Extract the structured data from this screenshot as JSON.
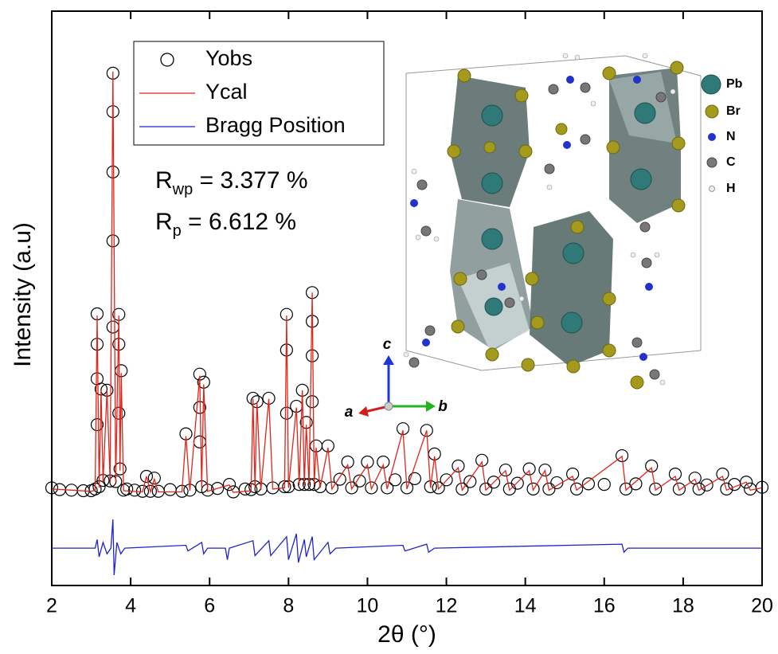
{
  "chart_data": {
    "type": "line",
    "x_label": "2θ (°)",
    "y_label": "Intensity (a.u)",
    "xlim": [
      2,
      20
    ],
    "xticks": [
      2,
      4,
      6,
      8,
      10,
      12,
      14,
      16,
      18,
      20
    ],
    "ylim": [
      0,
      100
    ],
    "legend": "top-left",
    "annotations": [
      {
        "main": "R",
        "sub": "wp",
        "rest": " = 3.377 %"
      },
      {
        "main": "R",
        "sub": "p",
        "rest": " = 6.612 %"
      }
    ],
    "series": [
      {
        "name": "Yobs",
        "color": "#000000",
        "mode": "markers",
        "x": [
          2,
          2.5,
          3.0,
          3.1,
          3.15,
          3.2,
          3.25,
          3.3,
          3.4,
          3.48,
          3.55,
          3.62,
          3.7,
          3.73,
          3.76,
          3.82,
          4.3,
          4.4,
          4.5,
          4.6,
          4.7,
          5.3,
          5.4,
          5.5,
          5.75,
          5.8,
          5.85,
          5.95,
          6.5,
          6.6,
          7.05,
          7.1,
          7.15,
          7.2,
          7.3,
          7.5,
          7.6,
          7.9,
          7.95,
          8.0,
          8.2,
          8.27,
          8.35,
          8.4,
          8.45,
          8.52,
          8.6,
          8.65,
          8.7,
          8.8,
          9.0,
          9.1,
          9.5,
          9.6,
          10.0,
          10.1,
          10.4,
          10.5,
          10.9,
          11.0,
          11.5,
          11.6,
          11.7,
          11.8,
          12.3,
          12.4,
          12.9,
          13.0,
          13.5,
          13.6,
          14.1,
          14.2,
          14.5,
          14.6,
          15.2,
          15.3,
          16.45,
          16.55,
          17.2,
          17.3,
          17.8,
          17.9,
          18.3,
          18.4,
          19.0,
          19.1,
          19.6,
          19.7,
          20,
          3.55,
          3.55,
          3.55,
          3.55,
          3.15,
          3.15,
          3.15,
          3.7,
          3.7,
          7.95,
          7.95,
          8.6,
          8.6,
          8.6,
          5.75,
          5.75,
          2.2,
          2.8,
          3.9,
          4.1,
          5.0,
          6.2,
          6.9,
          9.3,
          9.8,
          10.7,
          11.2,
          12.0,
          12.6,
          13.2,
          13.8,
          14.8,
          15.6,
          16.0,
          16.8,
          18.6,
          19.3
        ],
        "values": [
          17,
          16.6,
          16.5,
          16.8,
          47.3,
          17.2,
          34.2,
          18.3,
          34,
          18.2,
          89.2,
          18.1,
          47.2,
          20.3,
          37.4,
          16.6,
          16.4,
          19,
          16.4,
          18.7,
          16.4,
          16.4,
          26.4,
          16.6,
          36.8,
          17.2,
          35.4,
          16.6,
          17.6,
          16.3,
          16.7,
          32.6,
          17.2,
          32,
          16.8,
          32.6,
          17,
          17.2,
          47.2,
          17.2,
          31.2,
          17.6,
          34,
          17.6,
          28.4,
          17.6,
          51,
          17.6,
          24.3,
          17.2,
          24.3,
          17,
          21.5,
          17,
          21.5,
          17,
          21.5,
          17,
          27.3,
          17,
          27,
          17.2,
          22.9,
          17,
          20.8,
          16.8,
          21.8,
          16.8,
          20.1,
          16.8,
          20.3,
          16.8,
          20.1,
          16.8,
          19.4,
          16.8,
          22.6,
          16.8,
          20.8,
          16.8,
          19.4,
          16.8,
          18.7,
          16.8,
          19.4,
          16.8,
          18,
          16.8,
          17.1,
          82.5,
          72,
          60,
          45,
          42,
          36,
          28,
          42,
          30,
          41,
          30,
          46,
          40,
          32,
          31,
          25,
          16.7,
          16.5,
          16.8,
          16.6,
          16.7,
          16.9,
          16.8,
          18.5,
          18.2,
          18.4,
          18.6,
          18.4,
          18.1,
          18,
          17.8,
          17.9,
          17.7,
          17.6,
          17.7,
          17.5,
          17.6
        ]
      },
      {
        "name": "Ycal",
        "color": "#e0241b",
        "mode": "lines",
        "x": [
          2,
          2.5,
          3.0,
          3.1,
          3.15,
          3.2,
          3.25,
          3.3,
          3.4,
          3.48,
          3.55,
          3.62,
          3.7,
          3.73,
          3.76,
          3.82,
          4.3,
          4.4,
          4.5,
          4.6,
          4.7,
          5.3,
          5.4,
          5.5,
          5.75,
          5.8,
          5.85,
          5.95,
          6.5,
          6.6,
          7.05,
          7.1,
          7.15,
          7.2,
          7.3,
          7.5,
          7.6,
          7.9,
          7.95,
          8.0,
          8.2,
          8.27,
          8.35,
          8.4,
          8.45,
          8.52,
          8.6,
          8.65,
          8.7,
          8.8,
          9.0,
          9.1,
          9.5,
          9.6,
          10.0,
          10.1,
          10.4,
          10.5,
          10.9,
          11.0,
          11.5,
          11.6,
          11.7,
          11.8,
          12.3,
          12.4,
          12.9,
          13.0,
          13.5,
          13.6,
          14.1,
          14.2,
          14.5,
          14.6,
          15.2,
          15.3,
          16.45,
          16.55,
          17.2,
          17.3,
          17.8,
          17.9,
          18.3,
          18.4,
          19.0,
          19.1,
          19.6,
          19.7,
          20
        ],
        "values": [
          16.8,
          16.6,
          16.4,
          16.6,
          47,
          17,
          34,
          18,
          34,
          18,
          89.5,
          18,
          47,
          20,
          37,
          16.5,
          16.3,
          19,
          16.3,
          18.5,
          16.3,
          16.3,
          26,
          16.5,
          36.5,
          17,
          35,
          16.4,
          17.5,
          16.2,
          16.5,
          32.5,
          17,
          32,
          16.6,
          32.5,
          16.8,
          17,
          47,
          17,
          31,
          17.5,
          34,
          17.5,
          28,
          17.5,
          51,
          17.5,
          24,
          17,
          24,
          16.8,
          21,
          16.8,
          21,
          16.8,
          21,
          16.8,
          27,
          16.8,
          27,
          17,
          22.5,
          16.8,
          20.5,
          16.6,
          21.5,
          16.6,
          20,
          16.6,
          20,
          16.6,
          20,
          16.6,
          19,
          16.6,
          22.5,
          16.6,
          20.5,
          16.6,
          19,
          16.6,
          18.5,
          16.6,
          19,
          16.6,
          18,
          16.6,
          17
        ]
      },
      {
        "name": "Bragg Position",
        "color": "#1f24c8",
        "mode": "lines",
        "x": [
          2,
          3.1,
          3.15,
          3.2,
          3.3,
          3.4,
          3.5,
          3.55,
          3.58,
          3.65,
          3.75,
          3.85,
          5.4,
          5.45,
          5.8,
          5.85,
          5.95,
          6.4,
          6.45,
          6.5,
          7.1,
          7.15,
          7.5,
          7.55,
          7.95,
          8.0,
          8.2,
          8.25,
          8.4,
          8.45,
          8.6,
          8.65,
          9.0,
          9.05,
          9.2,
          10.9,
          10.95,
          11.5,
          11.55,
          11.7,
          16.45,
          16.5,
          16.6,
          20
        ],
        "values": [
          6.5,
          6.5,
          8,
          5,
          7.5,
          5.5,
          6.5,
          11.5,
          1.8,
          7.5,
          5.5,
          6.5,
          7,
          6,
          7.5,
          5.5,
          6.5,
          6.5,
          4.5,
          6.5,
          7.8,
          5.2,
          7.8,
          5.2,
          8.5,
          4.5,
          9,
          4,
          8,
          5,
          8.5,
          4.5,
          7.5,
          5.5,
          6.5,
          7,
          6,
          7.2,
          5.8,
          6.5,
          7.2,
          5.8,
          6.5,
          6.5
        ]
      }
    ]
  },
  "inset": {
    "axes": [
      "a",
      "b",
      "c"
    ],
    "atoms": [
      "Pb",
      "Br",
      "N",
      "C",
      "H"
    ]
  }
}
